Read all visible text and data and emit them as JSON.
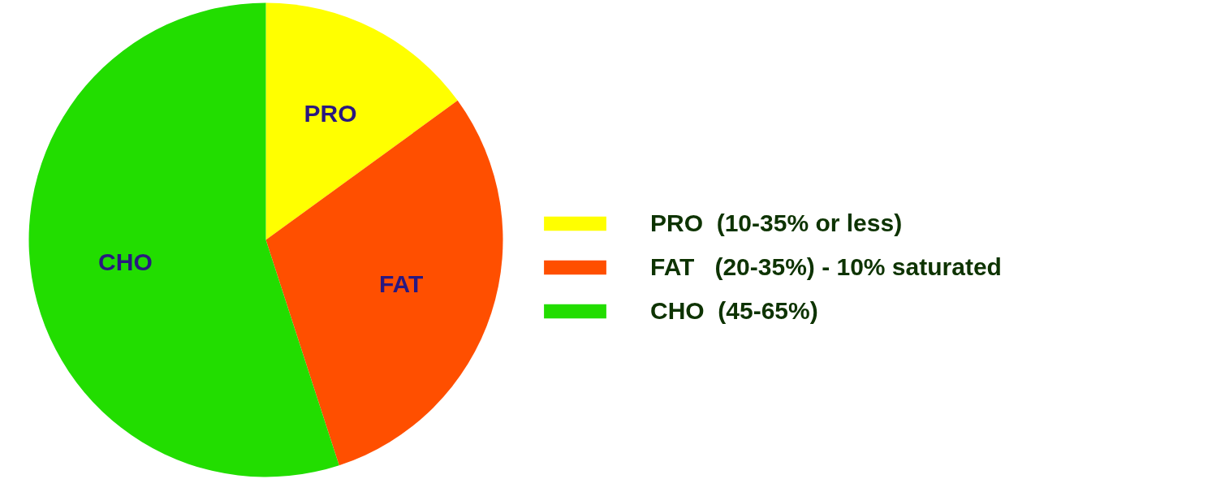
{
  "chart_data": {
    "type": "pie",
    "categories": [
      "PRO  (10-35% or less)",
      "FAT   (20-35%) - 10% saturated",
      "CHO  (45-65%)"
    ],
    "values": [
      15,
      30,
      55
    ],
    "colors": [
      "#ffff00",
      "#ff4f00",
      "#22dd00"
    ],
    "annotations": [
      "PRO",
      "FAT",
      "CHO"
    ],
    "legend": "right"
  }
}
